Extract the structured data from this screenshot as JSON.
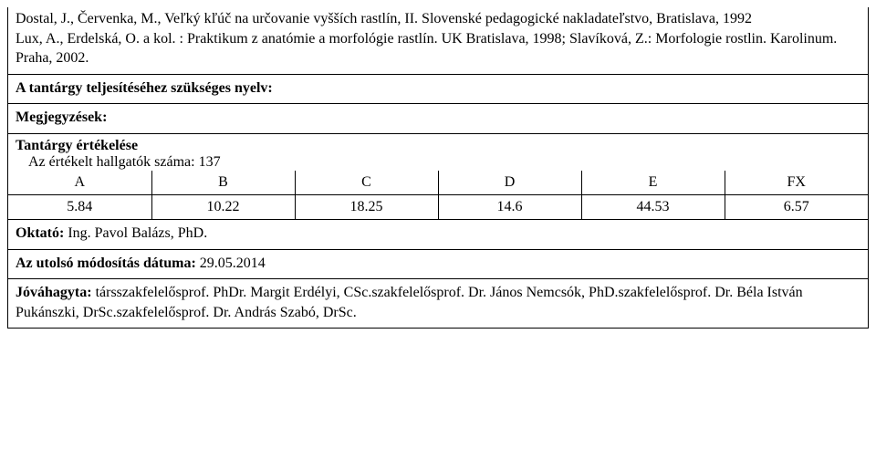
{
  "refs": {
    "text": "Dostal, J., Červenka, M., Veľký kľúč na určovanie vyšších rastlín, II. Slovenské pedagogické nakladateľstvo, Bratislava, 1992\nLux, A., Erdelská, O. a kol. : Praktikum z anatómie a morfológie rastlín. UK Bratislava, 1998; Slavíková, Z.: Morfologie rostlin. Karolinum. Praha, 2002."
  },
  "lang_req": {
    "label": "A tantárgy teljesítéséhez szükséges nyelv:"
  },
  "notes": {
    "label": "Megjegyzések:"
  },
  "eval": {
    "title": "Tantárgy értékelése",
    "count_line": "Az értékelt hallgatók száma: 137",
    "headers": [
      "A",
      "B",
      "C",
      "D",
      "E",
      "FX"
    ],
    "values": [
      "5.84",
      "10.22",
      "18.25",
      "14.6",
      "44.53",
      "6.57"
    ]
  },
  "instructor": {
    "label": "Oktató: ",
    "value": "Ing. Pavol Balázs, PhD."
  },
  "last_mod": {
    "label": "Az utolsó módosítás dátuma: ",
    "value": "29.05.2014"
  },
  "approval": {
    "label": "Jóváhagyta: ",
    "value": "társszakfelelősprof. PhDr. Margit Erdélyi, CSc.szakfelelősprof. Dr. János Nemcsók, PhD.szakfelelősprof. Dr. Béla István Pukánszki, DrSc.szakfelelősprof. Dr. András Szabó, DrSc."
  }
}
